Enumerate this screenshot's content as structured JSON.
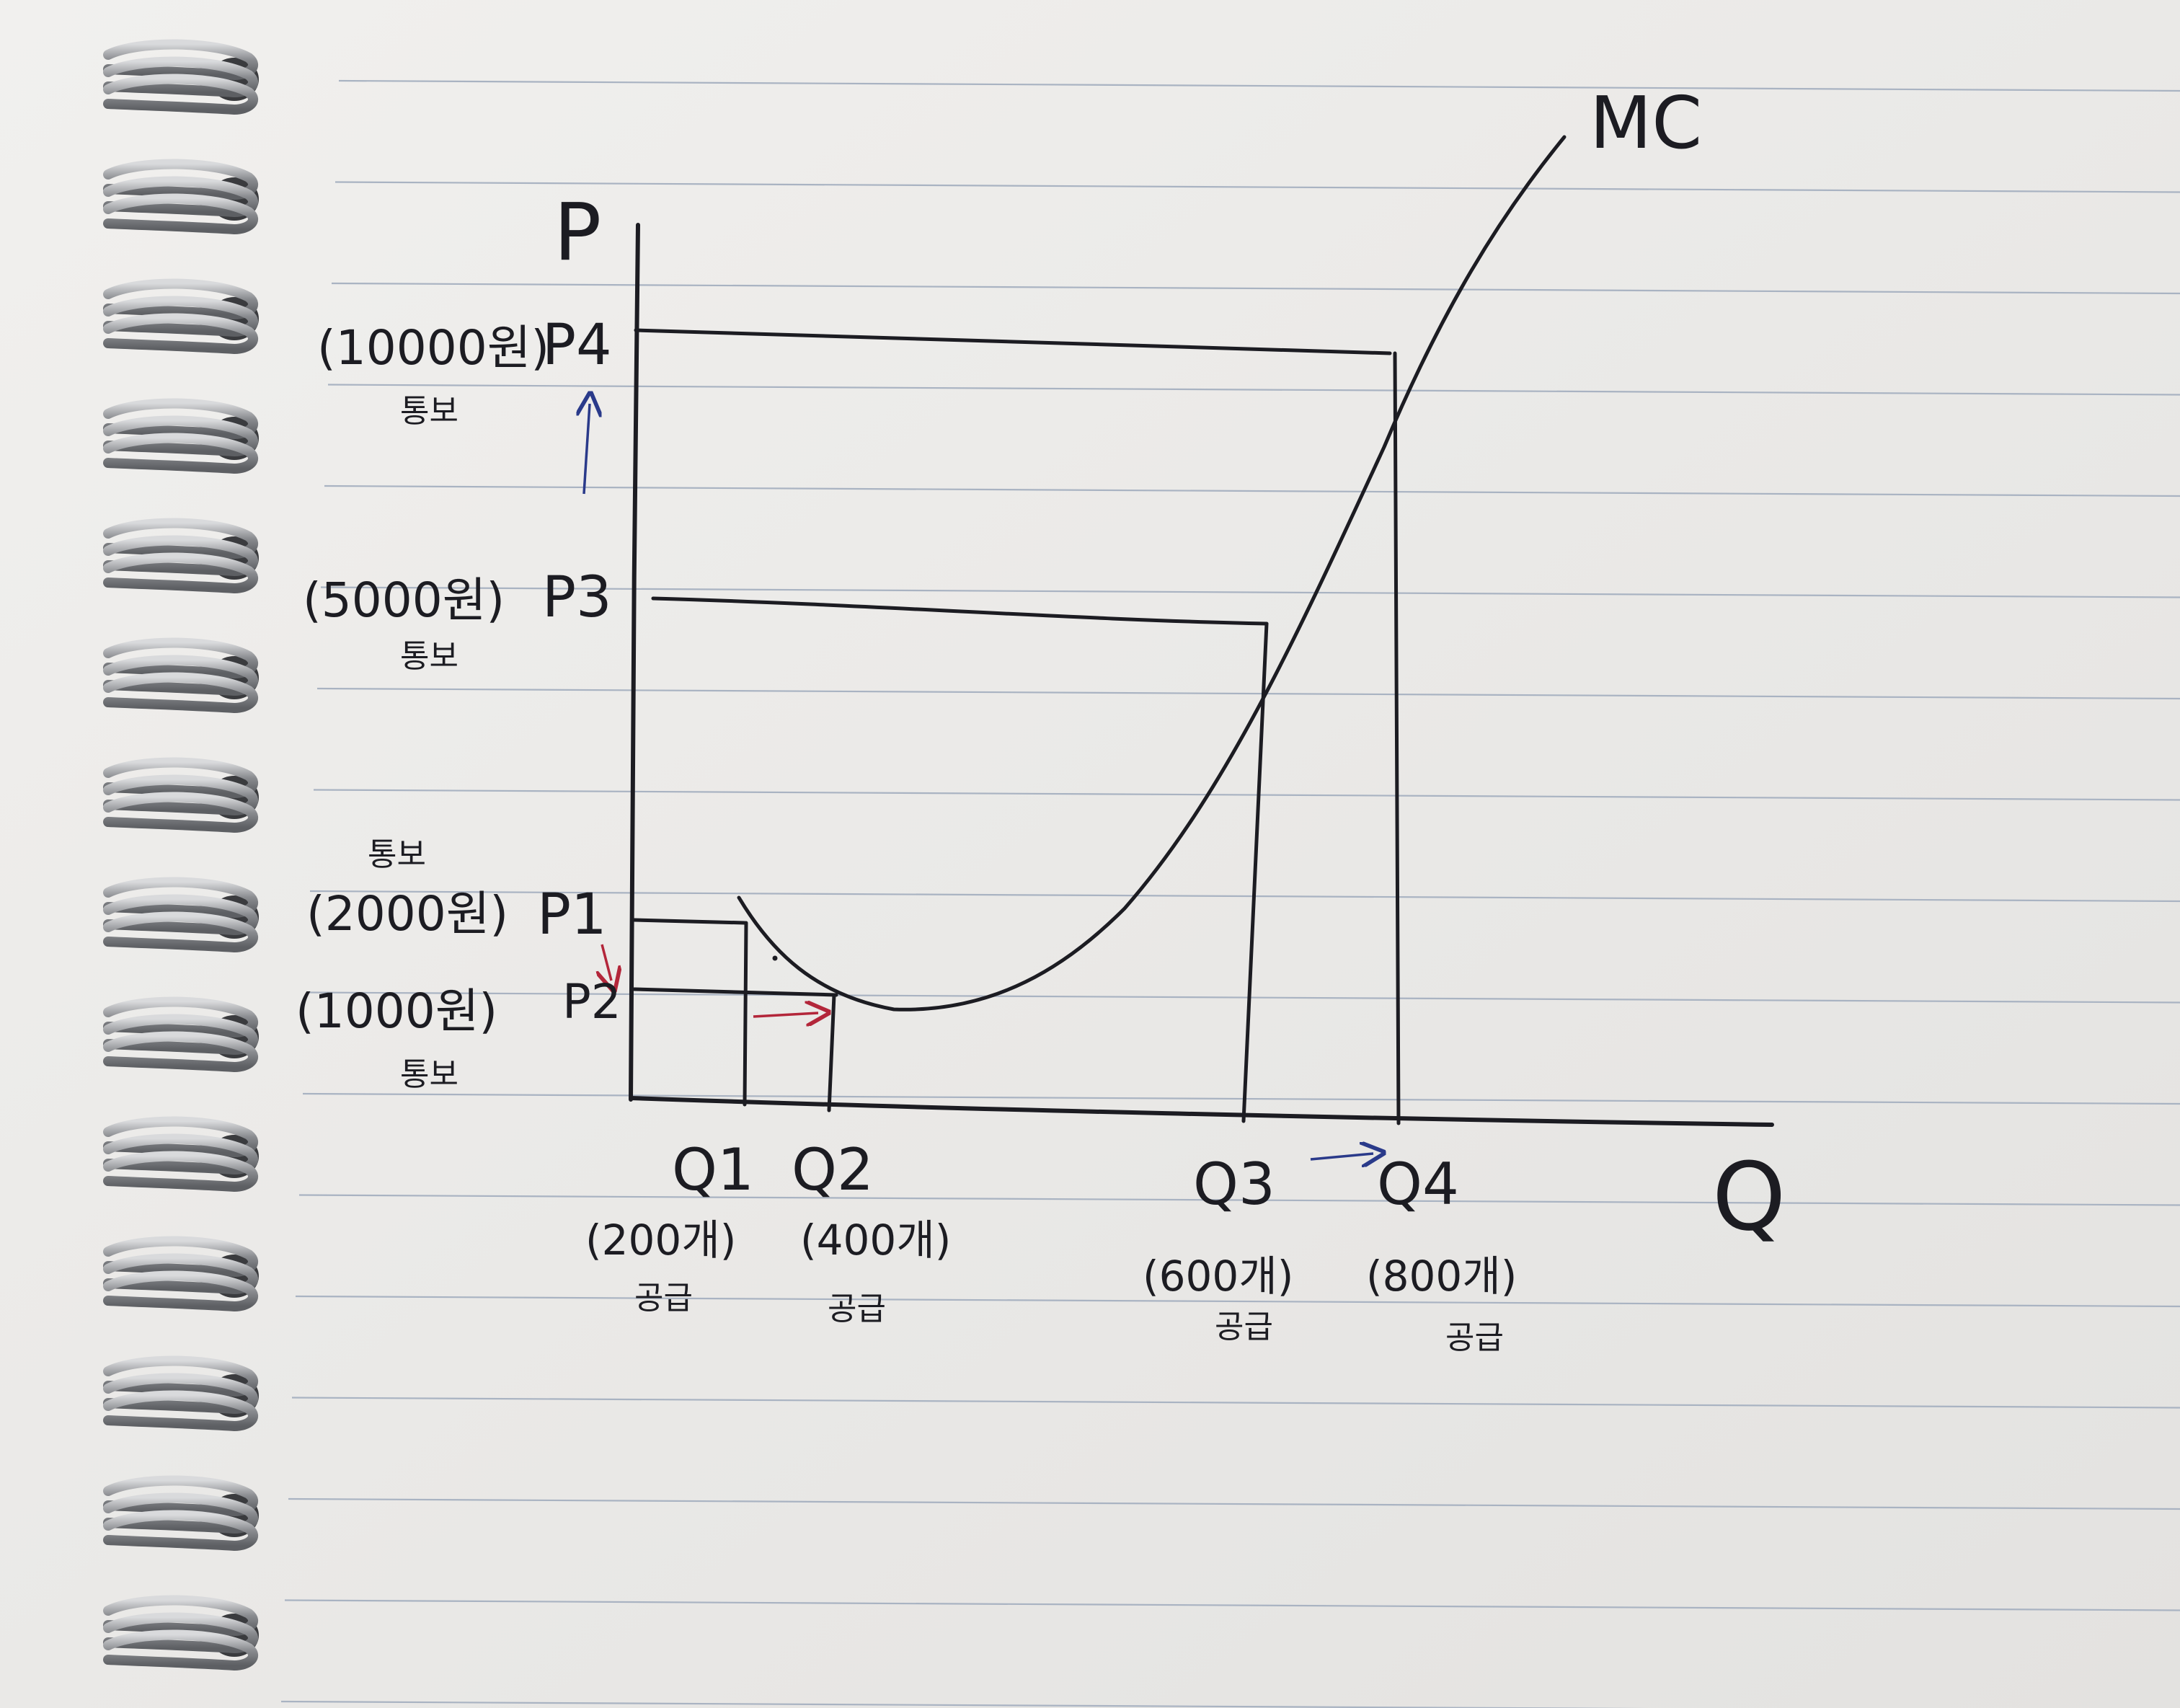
{
  "diagram": {
    "y_axis_label": "P",
    "x_axis_label": "Q",
    "curve_label": "MC",
    "price_levels": [
      {
        "label": "P4",
        "amount": "(10000원)",
        "note": "통보"
      },
      {
        "label": "P3",
        "amount": "(5000원)",
        "note": "통보"
      },
      {
        "label": "P1",
        "amount": "(2000원)",
        "note": "통보"
      },
      {
        "label": "P2",
        "amount": "(1000원)",
        "note": "통보"
      }
    ],
    "quantity_levels": [
      {
        "label": "Q1",
        "amount": "(200개)",
        "note": "공급"
      },
      {
        "label": "Q2",
        "amount": "(400개)",
        "note": "공급"
      },
      {
        "label": "Q3",
        "amount": "(600개)",
        "note": "공급"
      },
      {
        "label": "Q4",
        "amount": "(800개)",
        "note": "공급"
      }
    ],
    "colors": {
      "ink": "#1c1c22",
      "blue_arrow": "#2a3a8a",
      "red_arrow": "#b3263a",
      "paper": "#ecebea",
      "rule_line": "#a9b3c2",
      "spiral": "#8d8f93"
    }
  }
}
